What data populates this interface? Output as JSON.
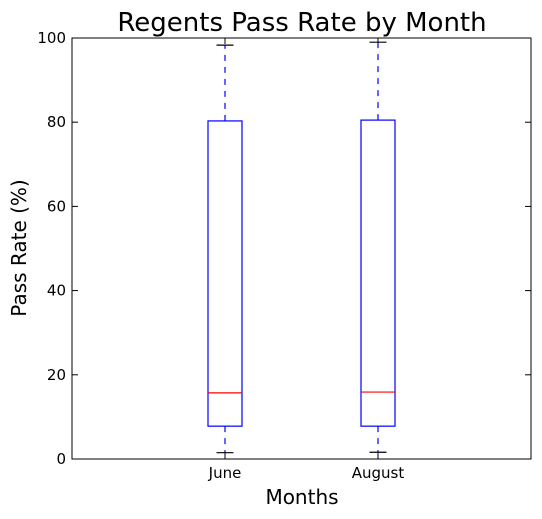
{
  "chart_data": {
    "type": "boxplot",
    "title": "Regents Pass Rate by Month",
    "xlabel": "Months",
    "ylabel": "Pass Rate (%)",
    "ylim": [
      0,
      100
    ],
    "yticks": [
      0,
      20,
      40,
      60,
      80,
      100
    ],
    "grid": false,
    "categories": [
      "June",
      "August"
    ],
    "boxes": [
      {
        "category": "June",
        "whisker_low": 1.5,
        "q1": 7.8,
        "median": 15.7,
        "q3": 80.3,
        "whisker_high": 98.3
      },
      {
        "category": "August",
        "whisker_low": 1.6,
        "q1": 7.8,
        "median": 15.9,
        "q3": 80.5,
        "whisker_high": 99.0
      }
    ],
    "colors": {
      "box": "#0000ff",
      "median": "#ff0000",
      "whisker": "#0000ff",
      "cap": "#000000",
      "axes": "#000000"
    }
  }
}
